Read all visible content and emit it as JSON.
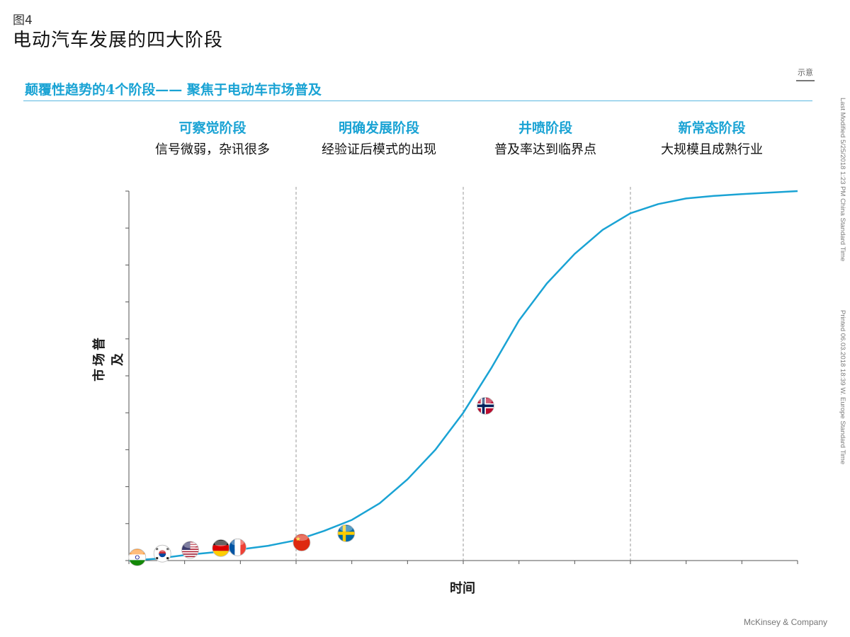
{
  "header": {
    "figure_number": "图4",
    "title": "电动汽车发展的四大阶段"
  },
  "subtitle": "颠覆性趋势的4个阶段—— 聚焦于电动车市场普及",
  "note_tag": "示意",
  "side_notes": {
    "modified": "Last Modified 5/25/2018 1:23 PM China Standard Time",
    "printed": "Printed 06.03.2018 18:39 W. Europe Standard Time"
  },
  "phases": [
    {
      "title": "可察觉阶段",
      "desc": "信号微弱，杂讯很多"
    },
    {
      "title": "明确发展阶段",
      "desc": "经验证后模式的出现"
    },
    {
      "title": "井喷阶段",
      "desc": "普及率达到临界点"
    },
    {
      "title": "新常态阶段",
      "desc": "大规模且成熟行业"
    }
  ],
  "footer": "McKinsey & Company",
  "colors": {
    "curve": "#1aa3d4",
    "accent": "#1aa3d4"
  },
  "chart_data": {
    "type": "line",
    "xlabel": "时间",
    "ylabel": "市场普及",
    "xlim": [
      0,
      12
    ],
    "ylim": [
      0,
      10
    ],
    "phase_boundaries": [
      3,
      6,
      9
    ],
    "series": [
      {
        "values_x": [
          0,
          0.5,
          1,
          1.5,
          2,
          2.5,
          3,
          3.5,
          4,
          4.5,
          5,
          5.5,
          6,
          6.5,
          7,
          7.5,
          8,
          8.5,
          9,
          9.5,
          10,
          10.5,
          11,
          11.5,
          12
        ],
        "values_y": [
          0,
          0.05,
          0.15,
          0.22,
          0.3,
          0.4,
          0.55,
          0.8,
          1.1,
          1.55,
          2.2,
          3.0,
          4.0,
          5.2,
          6.5,
          7.5,
          8.3,
          8.95,
          9.4,
          9.65,
          9.8,
          9.87,
          9.92,
          9.96,
          10.0
        ]
      }
    ],
    "markers": [
      {
        "country": "India",
        "x": 0.15,
        "y": 0.05
      },
      {
        "country": "South Korea",
        "x": 0.6,
        "y": 0.15
      },
      {
        "country": "USA",
        "x": 1.1,
        "y": 0.25
      },
      {
        "country": "Germany",
        "x": 1.65,
        "y": 0.3
      },
      {
        "country": "France",
        "x": 1.95,
        "y": 0.32
      },
      {
        "country": "China",
        "x": 3.1,
        "y": 0.45
      },
      {
        "country": "Sweden",
        "x": 3.9,
        "y": 0.7
      },
      {
        "country": "Norway",
        "x": 6.4,
        "y": 4.15
      }
    ],
    "grid": false
  }
}
